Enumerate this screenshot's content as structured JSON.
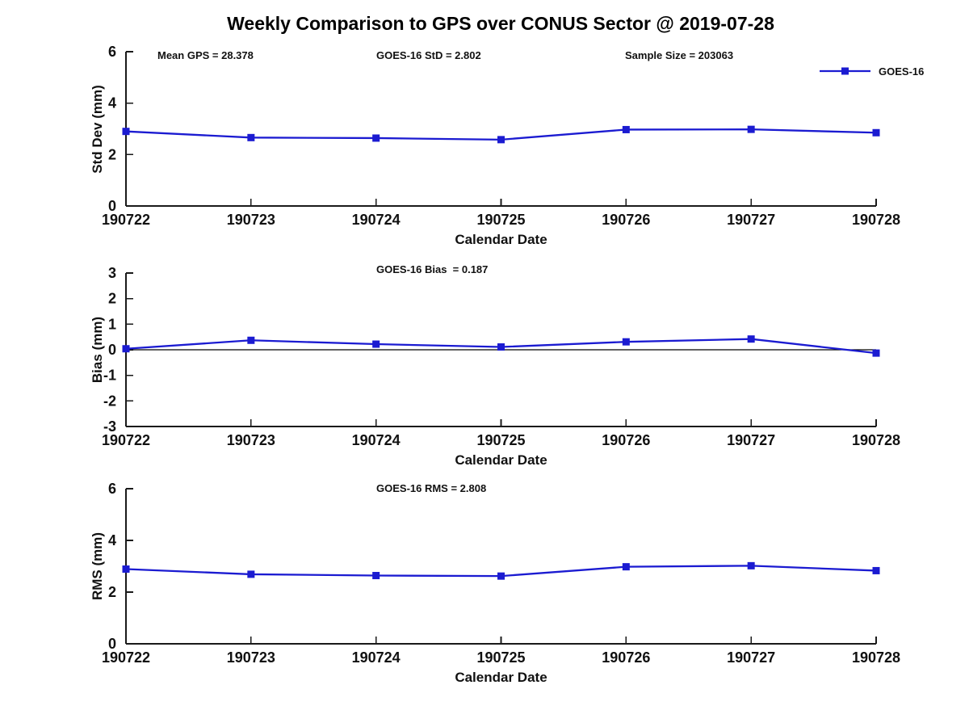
{
  "title": "Weekly Comparison to GPS over CONUS Sector @ 2019-07-28",
  "legend": {
    "label": "GOES-16"
  },
  "colors": {
    "line": "#1b1bd1",
    "axis": "#1a1a1a",
    "text": "#111111",
    "background": "#ffffff"
  },
  "chart_data": [
    {
      "type": "line",
      "name": "std-dev-vs-date",
      "series_name": "GOES-16",
      "annotations": [
        "Mean GPS = 28.378",
        "GOES-16 StD = 2.802",
        "Sample Size = 203063"
      ],
      "categories": [
        "190722",
        "190723",
        "190724",
        "190725",
        "190726",
        "190727",
        "190728"
      ],
      "values": [
        2.9,
        2.66,
        2.64,
        2.58,
        2.97,
        2.98,
        2.85
      ],
      "ylabel": "Std Dev (mm)",
      "xlabel": "Calendar Date",
      "ylim": [
        0,
        6
      ],
      "yticks": [
        0,
        2,
        4,
        6
      ],
      "zero_line": false,
      "grid": false,
      "legend_position": "top-right-outside"
    },
    {
      "type": "line",
      "name": "bias-vs-date",
      "series_name": "GOES-16",
      "annotations": [
        "GOES-16 Bias  = 0.187"
      ],
      "categories": [
        "190722",
        "190723",
        "190724",
        "190725",
        "190726",
        "190727",
        "190728"
      ],
      "values": [
        0.04,
        0.37,
        0.22,
        0.11,
        0.31,
        0.42,
        -0.13
      ],
      "ylabel": "Bias (mm)",
      "xlabel": "Calendar Date",
      "ylim": [
        -3,
        3
      ],
      "yticks": [
        3,
        2,
        1,
        0,
        -1,
        -2,
        -3
      ],
      "zero_line": true,
      "grid": false
    },
    {
      "type": "line",
      "name": "rms-vs-date",
      "series_name": "GOES-16",
      "annotations": [
        "GOES-16 RMS = 2.808"
      ],
      "categories": [
        "190722",
        "190723",
        "190724",
        "190725",
        "190726",
        "190727",
        "190728"
      ],
      "values": [
        2.89,
        2.69,
        2.64,
        2.62,
        2.98,
        3.02,
        2.83
      ],
      "ylabel": "RMS (mm)",
      "xlabel": "Calendar Date",
      "ylim": [
        0,
        6
      ],
      "yticks": [
        0,
        2,
        4,
        6
      ],
      "zero_line": false,
      "grid": false
    }
  ]
}
